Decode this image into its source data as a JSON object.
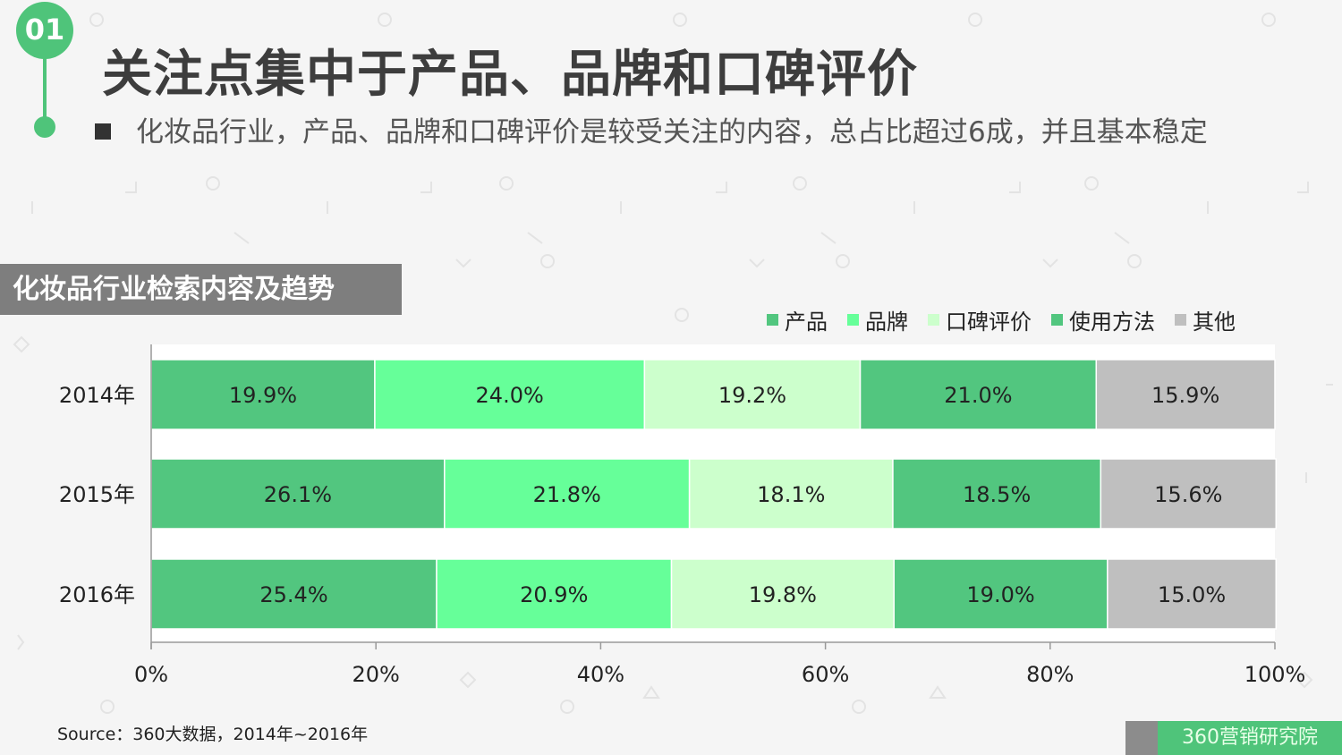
{
  "header": {
    "badge": "01",
    "title": "关注点集中于产品、品牌和口碑评价",
    "subtitle": "化妆品行业，产品、品牌和口碑评价是较受关注的内容，总占比超过6成，并且基本稳定"
  },
  "chart_heading": "化妆品行业检索内容及趋势",
  "colors": {
    "产品": "#52c67f",
    "品牌": "#66ff99",
    "口碑评价": "#ccffcc",
    "使用方法": "#52c67f",
    "其他": "#bfbfbf"
  },
  "legend": [
    {
      "label": "产品",
      "color": "#52c67f"
    },
    {
      "label": "品牌",
      "color": "#66ff99"
    },
    {
      "label": "口碑评价",
      "color": "#ccffcc"
    },
    {
      "label": "使用方法",
      "color": "#52c67f"
    },
    {
      "label": "其他",
      "color": "#bfbfbf"
    }
  ],
  "chart_data": {
    "type": "bar",
    "orientation": "horizontal",
    "stacked": true,
    "categories": [
      "2014年",
      "2015年",
      "2016年"
    ],
    "series": [
      {
        "name": "产品",
        "values": [
          19.9,
          26.1,
          25.4
        ],
        "labels": [
          "19.9%",
          "26.1%",
          "25.4%"
        ]
      },
      {
        "name": "品牌",
        "values": [
          24.0,
          21.8,
          20.9
        ],
        "labels": [
          "24.0%",
          "21.8%",
          "20.9%"
        ]
      },
      {
        "name": "口碑评价",
        "values": [
          19.2,
          18.1,
          19.8
        ],
        "labels": [
          "19.2%",
          "18.1%",
          "19.8%"
        ]
      },
      {
        "name": "使用方法",
        "values": [
          21.0,
          18.5,
          19.0
        ],
        "labels": [
          "21.0%",
          "18.5%",
          "19.0%"
        ]
      },
      {
        "name": "其他",
        "values": [
          15.9,
          15.6,
          15.0
        ],
        "labels": [
          "15.9%",
          "15.6%",
          "15.0%"
        ]
      }
    ],
    "x_ticks": [
      "0%",
      "20%",
      "40%",
      "60%",
      "80%",
      "100%"
    ],
    "xlim": [
      0,
      100
    ],
    "legend_position": "top-right",
    "grid": false
  },
  "footer": {
    "source": "Source：360大数据，2014年~2016年",
    "brand": "360营销研究院"
  }
}
